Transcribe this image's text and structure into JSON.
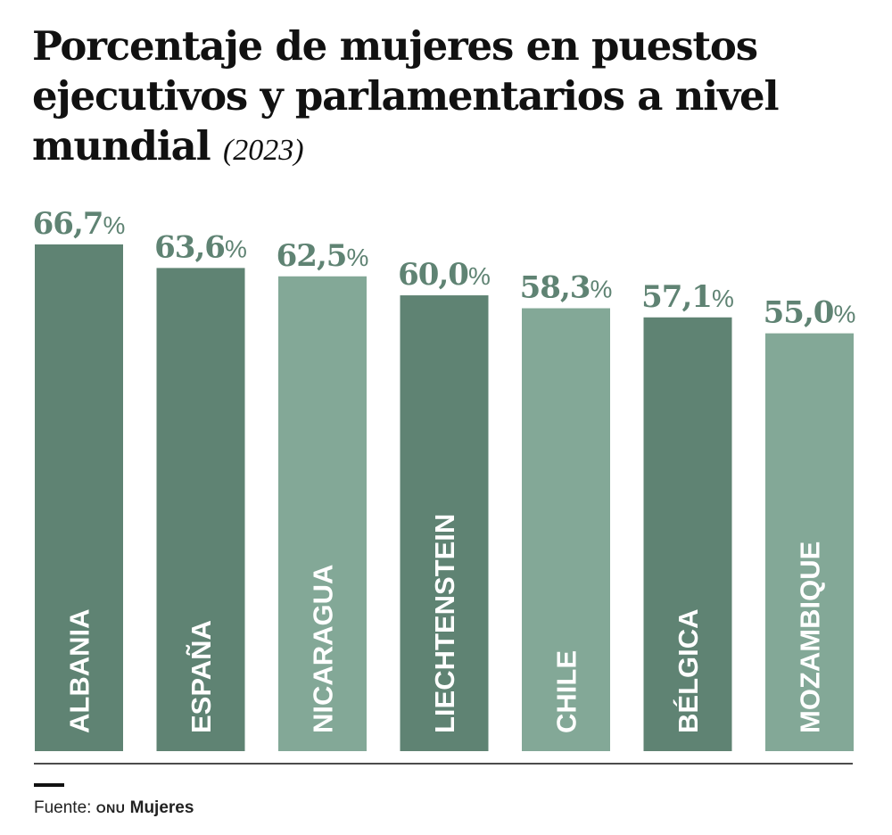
{
  "title": {
    "main": "Porcentaje de mujeres en puestos ejecutivos y parlamentarios a nivel mundial",
    "year": "(2023)"
  },
  "colors": {
    "dark": "#5f8373",
    "light": "#83a897",
    "value_text": "#5f8373",
    "bar_label_text": "#ffffff",
    "baseline": "#111111"
  },
  "chart_data": {
    "type": "bar",
    "title": "Porcentaje de mujeres en puestos ejecutivos y parlamentarios a nivel mundial (2023)",
    "categories": [
      "ALBANIA",
      "ESPAÑA",
      "NICARAGUA",
      "LIECHTENSTEIN",
      "CHILE",
      "BÉLGICA",
      "MOZAMBIQUE"
    ],
    "values": [
      66.7,
      63.6,
      62.5,
      60.0,
      58.3,
      57.1,
      55.0
    ],
    "value_labels": [
      "66,7",
      "63,6",
      "62,5",
      "60,0",
      "58,3",
      "57,1",
      "55,0"
    ],
    "value_suffix": "%",
    "bar_tones": [
      "dark",
      "dark",
      "light",
      "dark",
      "light",
      "dark",
      "light"
    ],
    "xlabel": "",
    "ylabel": "",
    "ylim": [
      0,
      66.7
    ],
    "grid": false,
    "legend": "none"
  },
  "source": {
    "prefix": "Fuente:",
    "org_prefix": "ONU",
    "org": "Mujeres"
  }
}
